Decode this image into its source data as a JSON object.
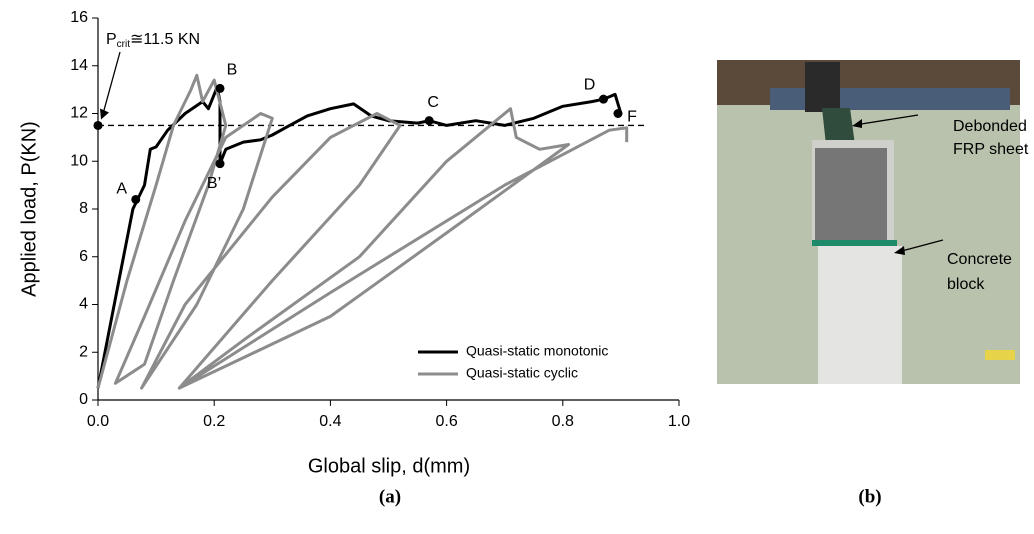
{
  "chart_data": {
    "type": "line",
    "x_label": "Global slip, d(mm)",
    "y_label": "Applied load, P(KN)",
    "xlim": [
      0,
      1
    ],
    "ylim": [
      0,
      16
    ],
    "xticks": [
      {
        "value": 0,
        "label": "0.0"
      },
      {
        "value": 0.2,
        "label": "0.2"
      },
      {
        "value": 0.4,
        "label": "0.4"
      },
      {
        "value": 0.6,
        "label": "0.6"
      },
      {
        "value": 0.8,
        "label": "0.8"
      },
      {
        "value": 1,
        "label": "1.0"
      }
    ],
    "yticks": [
      0,
      2,
      4,
      6,
      8,
      10,
      12,
      14,
      16
    ],
    "legend": "lower right",
    "series": [
      {
        "name": "Quasi-static monotonic",
        "color": "#000000",
        "x": [
          0,
          0.02,
          0.04,
          0.06,
          0.07,
          0.08,
          0.09,
          0.1,
          0.12,
          0.15,
          0.18,
          0.19,
          0.2,
          0.205,
          0.21,
          0.21,
          0.22,
          0.25,
          0.28,
          0.3,
          0.33,
          0.36,
          0.4,
          0.44,
          0.47,
          0.5,
          0.55,
          0.57,
          0.6,
          0.65,
          0.7,
          0.75,
          0.8,
          0.85,
          0.87,
          0.89,
          0.9
        ],
        "values": [
          0.5,
          3,
          5.5,
          8,
          8.5,
          9,
          10.5,
          10.6,
          11.3,
          12,
          12.5,
          12.2,
          12.8,
          13.1,
          12.5,
          9.9,
          10.5,
          10.8,
          10.9,
          11.1,
          11.5,
          11.9,
          12.2,
          12.4,
          11.9,
          11.7,
          11.6,
          11.7,
          11.5,
          11.7,
          11.5,
          11.8,
          12.3,
          12.5,
          12.6,
          12.8,
          12
        ]
      },
      {
        "name": "Quasi-static cyclic",
        "color": "#8c8c8c",
        "x": [
          0,
          0.05,
          0.1,
          0.13,
          0.16,
          0.17,
          0.18,
          0.2,
          0.22,
          0.19,
          0.13,
          0.08,
          0.03,
          0.08,
          0.15,
          0.22,
          0.28,
          0.3,
          0.25,
          0.17,
          0.075,
          0.15,
          0.3,
          0.4,
          0.48,
          0.52,
          0.45,
          0.3,
          0.14,
          0.25,
          0.45,
          0.6,
          0.71,
          0.72,
          0.76,
          0.81,
          0.6,
          0.4,
          0.14,
          0.4,
          0.7,
          0.88,
          0.91,
          0.91
        ],
        "values": [
          0.5,
          5,
          9,
          11.5,
          13,
          13.6,
          12.5,
          13.4,
          11.5,
          9,
          5,
          1.5,
          0.7,
          3.5,
          7.5,
          11,
          12,
          11.8,
          8,
          4,
          0.5,
          4,
          8.5,
          11,
          12,
          11.5,
          9,
          5,
          0.5,
          2.5,
          6,
          10,
          12.2,
          11,
          10.5,
          10.7,
          7,
          3.5,
          0.5,
          4.5,
          9,
          11.3,
          11.4,
          10.8
        ]
      }
    ],
    "reference_line": 11.5,
    "annotation": {
      "base": "P",
      "subscript": "crit",
      "text": "≅11.5 KN",
      "x": 0,
      "y": 11.5
    },
    "points": [
      {
        "label": "A",
        "x": 0.065,
        "y": 8.4
      },
      {
        "label": "B",
        "x": 0.21,
        "y": 13.05
      },
      {
        "label": "B’",
        "x": 0.21,
        "y": 9.9
      },
      {
        "label": "C",
        "x": 0.57,
        "y": 11.7
      },
      {
        "label": "D",
        "x": 0.87,
        "y": 12.6
      },
      {
        "label": "F",
        "x": 0.895,
        "y": 12
      }
    ]
  },
  "panel_labels": [
    "(a)",
    "(b)"
  ],
  "photo": {
    "labels": [
      [
        "Debonded",
        "FRP sheet"
      ],
      [
        "Concrete",
        "block"
      ]
    ]
  }
}
